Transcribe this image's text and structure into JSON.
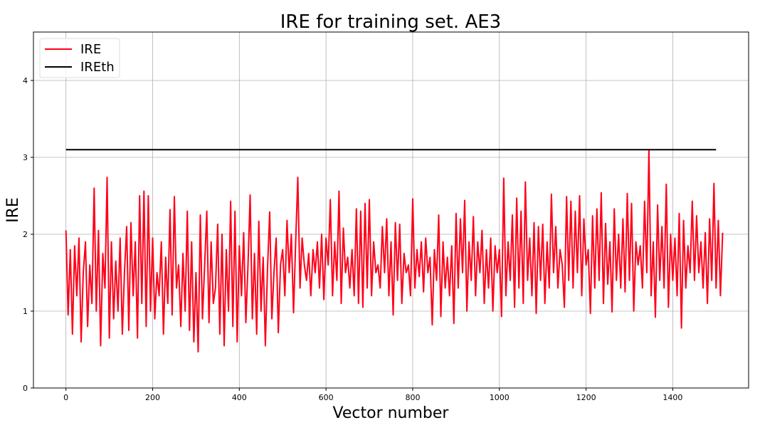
{
  "chart_data": {
    "type": "line",
    "title": "IRE for training set. AE3",
    "xlabel": "Vector number",
    "ylabel": "IRE",
    "xlim": [
      -75,
      1575
    ],
    "ylim": [
      0,
      4.63
    ],
    "xticks": [
      0,
      200,
      400,
      600,
      800,
      1000,
      1200,
      1400
    ],
    "yticks": [
      0,
      1,
      2,
      3,
      4
    ],
    "grid": true,
    "legend_placement": "upper-left",
    "series": [
      {
        "name": "IRE",
        "color": "#ff0018",
        "x_start": 0,
        "x_step": 5,
        "values": [
          2.05,
          0.95,
          1.8,
          0.7,
          1.85,
          1.2,
          1.95,
          0.6,
          1.5,
          1.9,
          0.8,
          1.6,
          1.1,
          2.6,
          1.0,
          2.05,
          0.55,
          1.75,
          1.3,
          2.74,
          0.65,
          1.9,
          0.9,
          1.65,
          1.0,
          1.95,
          0.7,
          1.5,
          2.1,
          0.75,
          2.15,
          1.2,
          1.9,
          0.65,
          2.5,
          1.1,
          2.56,
          0.8,
          2.5,
          1.0,
          1.95,
          0.9,
          1.5,
          1.2,
          1.9,
          0.7,
          1.7,
          1.1,
          2.32,
          0.95,
          2.49,
          1.3,
          1.6,
          0.8,
          1.75,
          1.0,
          2.3,
          0.75,
          1.9,
          0.6,
          1.5,
          0.47,
          2.25,
          0.9,
          1.6,
          2.3,
          0.85,
          1.9,
          1.1,
          1.3,
          2.13,
          0.7,
          2.0,
          0.55,
          1.8,
          1.0,
          2.43,
          0.8,
          2.3,
          0.6,
          1.85,
          1.2,
          2.02,
          0.85,
          1.6,
          2.51,
          0.9,
          1.75,
          0.7,
          2.17,
          1.0,
          1.7,
          0.55,
          1.55,
          2.29,
          0.9,
          1.5,
          1.95,
          0.72,
          1.6,
          1.8,
          1.2,
          2.18,
          1.5,
          2.0,
          0.98,
          1.9,
          2.74,
          1.3,
          1.95,
          1.6,
          1.4,
          1.75,
          1.2,
          1.8,
          1.5,
          1.9,
          1.3,
          2.0,
          1.15,
          1.95,
          1.6,
          2.45,
          1.2,
          1.9,
          1.4,
          2.56,
          1.1,
          2.08,
          1.5,
          1.7,
          1.3,
          1.8,
          1.2,
          2.33,
          1.1,
          2.3,
          1.05,
          2.4,
          1.3,
          2.45,
          1.2,
          1.9,
          1.5,
          1.6,
          1.3,
          2.1,
          1.5,
          2.2,
          1.2,
          1.9,
          0.95,
          2.15,
          1.4,
          2.13,
          1.1,
          1.75,
          1.5,
          1.6,
          1.2,
          2.46,
          1.3,
          1.8,
          1.45,
          1.9,
          1.25,
          1.95,
          1.5,
          1.7,
          0.82,
          1.8,
          1.4,
          2.25,
          0.93,
          1.9,
          1.3,
          1.7,
          1.2,
          1.85,
          0.84,
          2.27,
          1.3,
          2.2,
          1.5,
          2.44,
          1.0,
          1.9,
          1.4,
          2.23,
          1.2,
          1.9,
          1.5,
          2.05,
          1.1,
          1.8,
          1.3,
          1.95,
          1.0,
          1.85,
          1.5,
          1.8,
          0.93,
          2.73,
          1.2,
          1.9,
          1.4,
          2.25,
          1.05,
          2.47,
          1.3,
          2.3,
          1.1,
          2.68,
          1.4,
          1.95,
          1.2,
          2.15,
          0.97,
          2.1,
          1.4,
          2.13,
          1.1,
          1.9,
          1.3,
          2.52,
          1.5,
          2.1,
          1.3,
          1.8,
          1.6,
          1.05,
          2.49,
          1.4,
          2.43,
          1.3,
          2.3,
          1.5,
          2.5,
          1.2,
          2.2,
          1.6,
          1.8,
          0.97,
          2.24,
          1.3,
          2.33,
          1.4,
          2.54,
          1.1,
          2.14,
          1.35,
          1.9,
          0.99,
          2.33,
          1.4,
          2.0,
          1.3,
          2.2,
          1.25,
          2.53,
          1.4,
          2.4,
          1.0,
          1.9,
          1.6,
          1.85,
          1.3,
          2.43,
          1.5,
          3.1,
          1.2,
          1.9,
          0.92,
          2.38,
          1.4,
          2.1,
          1.3,
          2.65,
          1.05,
          2.0,
          1.4,
          1.95,
          1.2,
          2.27,
          0.78,
          2.18,
          1.3,
          1.85,
          1.5,
          2.43,
          1.4,
          2.24,
          1.5,
          1.9,
          1.3,
          2.02,
          1.1,
          2.2,
          1.4,
          2.66,
          1.3,
          2.18,
          1.2,
          2.02
        ]
      },
      {
        "name": "IREth",
        "color": "#000000",
        "x": [
          0,
          1500
        ],
        "values": [
          3.1,
          3.1
        ]
      }
    ]
  }
}
